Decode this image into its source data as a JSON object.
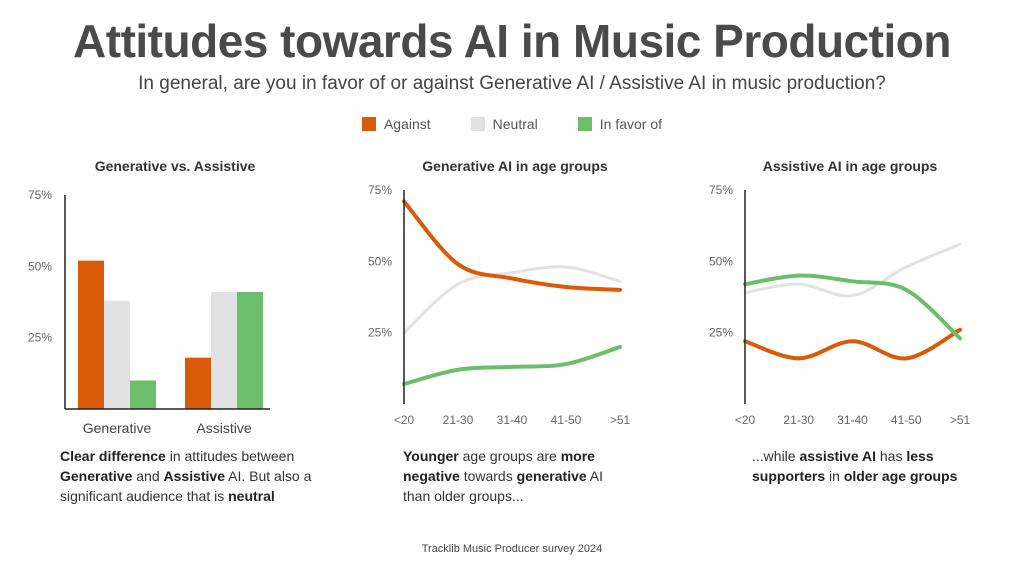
{
  "title": "Attitudes towards AI in Music Production",
  "subtitle": "In general, are you in favor of or against Generative AI / Assistive AI in music production?",
  "colors": {
    "against": "#d95a07",
    "neutral": "#e2e2e2",
    "favor": "#6cbd6c",
    "axis": "#222222",
    "tick": "#666666"
  },
  "legend": [
    {
      "label": "Against",
      "key": "against"
    },
    {
      "label": "Neutral",
      "key": "neutral"
    },
    {
      "label": "In favor of",
      "key": "favor"
    }
  ],
  "chart_data": [
    {
      "type": "bar",
      "title": "Generative vs. Assistive",
      "categories": [
        "Generative",
        "Assistive"
      ],
      "series": [
        {
          "name": "Against",
          "key": "against",
          "values": [
            52,
            18
          ]
        },
        {
          "name": "Neutral",
          "key": "neutral",
          "values": [
            38,
            41
          ]
        },
        {
          "name": "In favor of",
          "key": "favor",
          "values": [
            10,
            41
          ]
        }
      ],
      "yticks": [
        "25%",
        "50%",
        "75%"
      ],
      "ylim": [
        0,
        75
      ],
      "grid": false,
      "legend_position": "top"
    },
    {
      "type": "line",
      "title": "Generative AI in age groups",
      "categories": [
        "<20",
        "21-30",
        "31-40",
        "41-50",
        ">51"
      ],
      "series": [
        {
          "name": "Neutral",
          "key": "neutral",
          "values": [
            25,
            42,
            46,
            48,
            43
          ]
        },
        {
          "name": "In favor of",
          "key": "favor",
          "values": [
            7,
            12,
            13,
            14,
            20
          ]
        },
        {
          "name": "Against",
          "key": "against",
          "values": [
            71,
            49,
            44,
            41,
            40
          ]
        }
      ],
      "yticks": [
        "25%",
        "50%",
        "75%"
      ],
      "ylim": [
        0,
        75
      ],
      "grid": false
    },
    {
      "type": "line",
      "title": "Assistive AI in age groups",
      "categories": [
        "<20",
        "21-30",
        "31-40",
        "41-50",
        ">51"
      ],
      "series": [
        {
          "name": "Neutral",
          "key": "neutral",
          "values": [
            39,
            42,
            38,
            48,
            56
          ]
        },
        {
          "name": "Against",
          "key": "against",
          "values": [
            22,
            16,
            22,
            16,
            26
          ]
        },
        {
          "name": "In favor of",
          "key": "favor",
          "values": [
            42,
            45,
            43,
            40,
            23
          ]
        }
      ],
      "yticks": [
        "25%",
        "50%",
        "75%"
      ],
      "ylim": [
        0,
        75
      ],
      "grid": false
    }
  ],
  "captions": [
    [
      {
        "t": "Clear difference",
        "b": true
      },
      {
        "t": " in attitudes between ",
        "b": false
      },
      {
        "t": "Generative",
        "b": true
      },
      {
        "t": " and ",
        "b": false
      },
      {
        "t": "Assistive",
        "b": true
      },
      {
        "t": " AI. But also a significant audience that is ",
        "b": false
      },
      {
        "t": "neutral",
        "b": true
      }
    ],
    [
      {
        "t": "Younger",
        "b": true
      },
      {
        "t": " age groups are ",
        "b": false
      },
      {
        "t": "more negative",
        "b": true
      },
      {
        "t": " towards ",
        "b": false
      },
      {
        "t": "generative",
        "b": true
      },
      {
        "t": " AI than older groups...",
        "b": false
      }
    ],
    [
      {
        "t": "...while ",
        "b": false
      },
      {
        "t": "assistive AI",
        "b": true
      },
      {
        "t": " has ",
        "b": false
      },
      {
        "t": "less supporters",
        "b": true
      },
      {
        "t": " in ",
        "b": false
      },
      {
        "t": "older age groups",
        "b": true
      }
    ]
  ],
  "footer": "Tracklib Music Producer survey 2024"
}
